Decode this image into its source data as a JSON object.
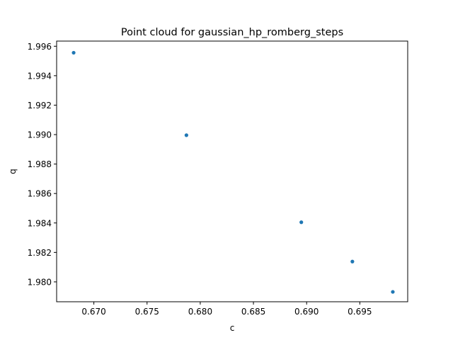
{
  "chart_data": {
    "type": "scatter",
    "title": "Point cloud for gaussian_hp_romberg_steps",
    "xlabel": "c",
    "ylabel": "q",
    "xlim": [
      0.6665,
      0.6995
    ],
    "ylim": [
      1.97865,
      1.99635
    ],
    "x_ticks": [
      0.67,
      0.675,
      0.68,
      0.685,
      0.69,
      0.695
    ],
    "x_tick_labels": [
      "0.670",
      "0.675",
      "0.680",
      "0.685",
      "0.690",
      "0.695"
    ],
    "y_ticks": [
      1.98,
      1.982,
      1.984,
      1.986,
      1.988,
      1.99,
      1.992,
      1.994,
      1.996
    ],
    "y_tick_labels": [
      "1.980",
      "1.982",
      "1.984",
      "1.986",
      "1.988",
      "1.990",
      "1.992",
      "1.994",
      "1.996"
    ],
    "grid": false,
    "point_color": "#1f77b4",
    "series": [
      {
        "x": [
          0.6681,
          0.6787,
          0.6895,
          0.6943,
          0.6981
        ],
        "y": [
          1.99556,
          1.98996,
          1.98405,
          1.98138,
          1.97932
        ]
      }
    ]
  }
}
